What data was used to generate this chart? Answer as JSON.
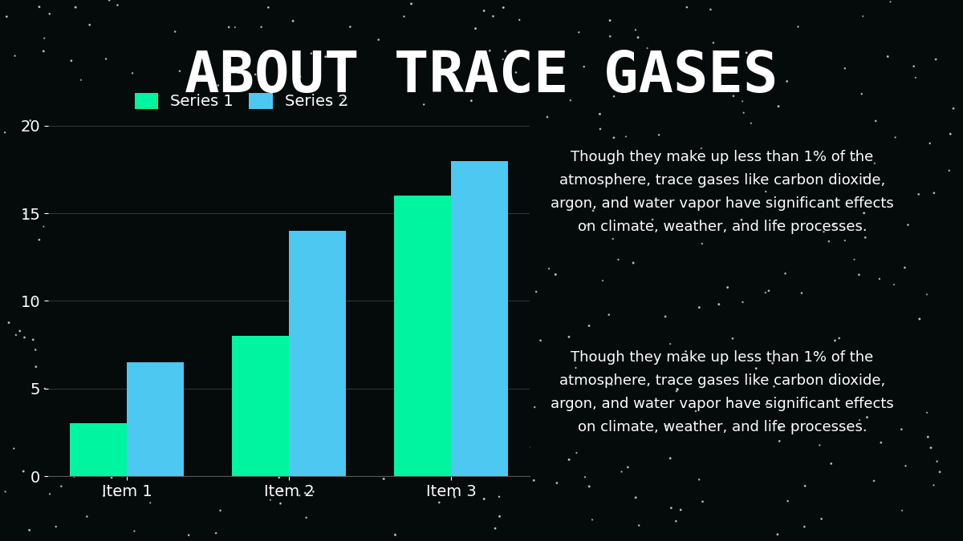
{
  "title": "ABOUT TRACE GASES",
  "background_color": "#050a0a",
  "title_color": "#ffffff",
  "title_fontsize": 52,
  "categories": [
    "Item 1",
    "Item 2",
    "Item 3"
  ],
  "series1_values": [
    3,
    8,
    16
  ],
  "series2_values": [
    6.5,
    14,
    18
  ],
  "series1_color": "#00f5a0",
  "series2_color": "#4dc8f0",
  "series1_label": "Series 1",
  "series2_label": "Series 2",
  "ylim": [
    0,
    21
  ],
  "yticks": [
    0,
    5,
    10,
    15,
    20
  ],
  "tick_color": "#ffffff",
  "grid_color": "#333333",
  "annotation_text": "Though they make up less than 1% of the\natmosphere, trace gases like carbon dioxide,\nargon, and water vapor have significant effects\non climate, weather, and life processes.",
  "annotation_color": "#ffffff",
  "annotation_fontsize": 13,
  "bar_width": 0.35,
  "legend_fontsize": 14,
  "axis_label_fontsize": 14,
  "accent_bar_color_green": "#00f5a0",
  "accent_bar_color_blue": "#4dc8f0"
}
